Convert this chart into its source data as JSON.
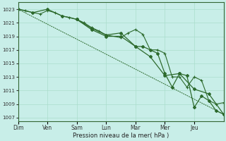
{
  "background_color": "#c8eee8",
  "grid_color": "#aaddcc",
  "line_color": "#2d6a2d",
  "xlabel": "Pression niveau de la mer( hPa )",
  "ylim": [
    1006.5,
    1024.0
  ],
  "yticks": [
    1007,
    1009,
    1011,
    1013,
    1015,
    1017,
    1019,
    1021,
    1023
  ],
  "day_labels": [
    "Dim",
    "Ven",
    "Sam",
    "Lun",
    "Mar",
    "Mer",
    "Jeu"
  ],
  "day_positions": [
    0,
    1,
    2,
    3,
    4,
    5,
    6
  ],
  "xlim": [
    0,
    7
  ],
  "trend_x": [
    0,
    7
  ],
  "trend_y": [
    1023,
    1007.5
  ],
  "line1_x": [
    0.0,
    0.25,
    0.5,
    0.75,
    1.0,
    1.25,
    1.5,
    1.75,
    2.0,
    2.25,
    2.5,
    2.75,
    3.0,
    3.5,
    3.75,
    4.0,
    4.25,
    4.5,
    4.75,
    5.0,
    5.25,
    5.5,
    5.75,
    6.0,
    6.25,
    6.5,
    6.75,
    7.0
  ],
  "line1_y": [
    1023.0,
    1022.8,
    1022.5,
    1022.3,
    1022.8,
    1022.5,
    1022.0,
    1021.8,
    1021.5,
    1021.0,
    1020.3,
    1019.8,
    1019.2,
    1018.8,
    1019.5,
    1020.0,
    1019.3,
    1017.0,
    1017.0,
    1016.5,
    1013.0,
    1013.0,
    1011.5,
    1013.0,
    1012.5,
    1009.5,
    1009.0,
    1009.2
  ],
  "line2_x": [
    0.0,
    0.5,
    1.0,
    1.5,
    2.0,
    2.5,
    3.0,
    3.5,
    4.0,
    4.5,
    5.0,
    5.5,
    6.0,
    6.5,
    7.0
  ],
  "line2_y": [
    1023.0,
    1022.5,
    1023.0,
    1022.0,
    1021.5,
    1020.0,
    1019.0,
    1019.0,
    1017.5,
    1016.0,
    1013.2,
    1013.5,
    1011.2,
    1010.5,
    1007.5
  ],
  "line3_x": [
    2.0,
    2.5,
    3.0,
    3.5,
    4.0,
    4.25,
    4.5,
    4.75,
    5.0,
    5.25,
    5.5,
    5.75,
    6.0,
    6.25,
    6.5,
    6.75,
    7.0
  ],
  "line3_y": [
    1021.5,
    1020.2,
    1019.2,
    1019.5,
    1017.5,
    1017.5,
    1017.0,
    1016.5,
    1013.5,
    1011.5,
    1013.5,
    1013.2,
    1008.5,
    1010.2,
    1009.5,
    1008.0,
    1007.5
  ]
}
